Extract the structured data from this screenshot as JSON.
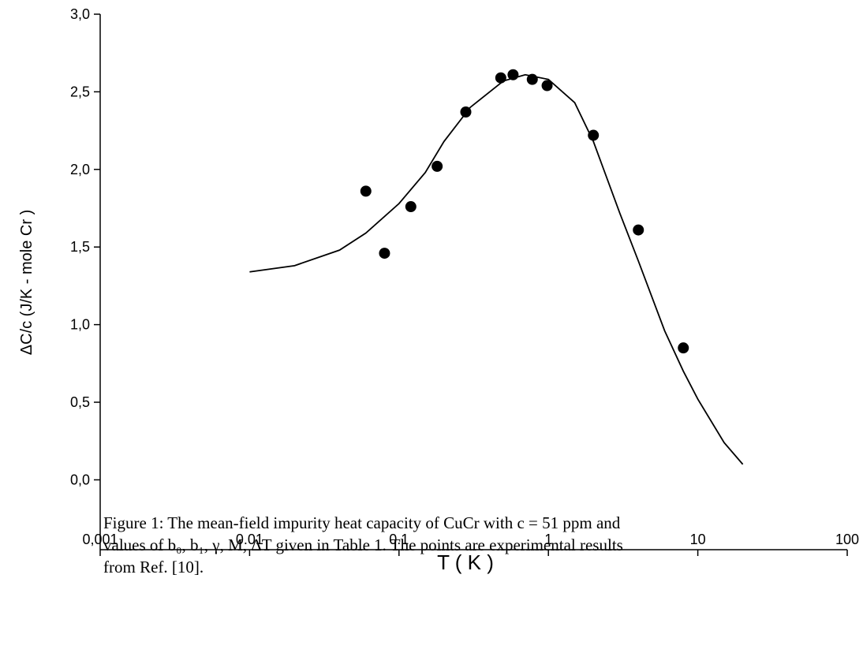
{
  "chart_data": {
    "type": "scatter",
    "xlabel": "T ( K )",
    "ylabel": "ΔC/c  (J/K - mole Cr )",
    "xscale": "log",
    "xlim": [
      0.001,
      100
    ],
    "xticks": [
      {
        "value": 0.001,
        "label": "0,001"
      },
      0.01,
      0.1,
      1,
      10,
      100
    ],
    "ylim": [
      -0.45,
      3.0
    ],
    "yticks": [
      {
        "value": 0,
        "label": "0,0"
      },
      {
        "value": 0.5,
        "label": "0,5"
      },
      {
        "value": 1,
        "label": "1,0"
      },
      {
        "value": 1.5,
        "label": "1,5"
      },
      {
        "value": 2,
        "label": "2,0"
      },
      {
        "value": 2.5,
        "label": "2,5"
      },
      {
        "value": 3,
        "label": "3,0"
      }
    ],
    "series": [
      {
        "kind": "points",
        "color": "#000000",
        "x": [
          0.06,
          0.08,
          0.12,
          0.18,
          0.28,
          0.48,
          0.58,
          0.78,
          0.98,
          2,
          4,
          8
        ],
        "values": [
          1.86,
          1.46,
          1.76,
          2.02,
          2.37,
          2.59,
          2.61,
          2.58,
          2.54,
          2.22,
          1.61,
          0.85
        ]
      },
      {
        "kind": "line",
        "color": "#000000",
        "x": [
          0.01,
          0.02,
          0.04,
          0.06,
          0.1,
          0.15,
          0.2,
          0.3,
          0.5,
          0.7,
          1,
          1.5,
          2,
          3,
          4,
          6,
          8,
          10,
          15,
          20
        ],
        "values": [
          1.34,
          1.38,
          1.48,
          1.59,
          1.78,
          1.98,
          2.18,
          2.4,
          2.57,
          2.61,
          2.58,
          2.43,
          2.18,
          1.72,
          1.41,
          0.96,
          0.7,
          0.52,
          0.24,
          0.1
        ]
      }
    ]
  },
  "caption": {
    "lines": [
      "Figure 1: The mean-field impurity heat capacity of CuCr with c = 51 ppm and",
      "values of b₀, b₁, γ, M, ΔT given in Table 1. The points are experimental results",
      "from Ref. [10]."
    ]
  }
}
